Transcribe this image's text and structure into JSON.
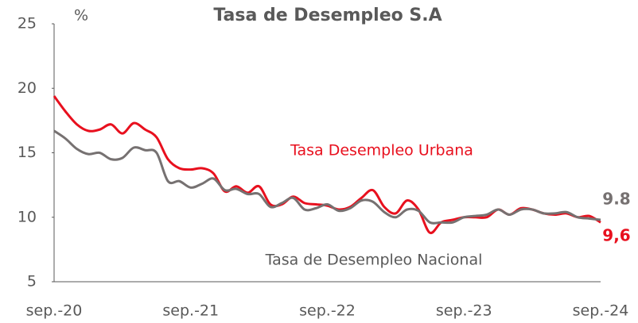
{
  "chart_data": {
    "type": "line",
    "title": "Tasa de Desempleo S.A",
    "y_label": "%",
    "categories": [
      "sep.-20",
      null,
      null,
      null,
      null,
      null,
      null,
      null,
      null,
      null,
      null,
      null,
      "sep.-21",
      null,
      null,
      null,
      null,
      null,
      null,
      null,
      null,
      null,
      null,
      null,
      "sep.-22",
      null,
      null,
      null,
      null,
      null,
      null,
      null,
      null,
      null,
      null,
      null,
      "sep.-23",
      null,
      null,
      null,
      null,
      null,
      null,
      null,
      null,
      null,
      null,
      null,
      "sep.-24"
    ],
    "series": [
      {
        "name": "Tasa Desempleo Urbana",
        "color": "#e8101e",
        "last_label": "9,6",
        "values": [
          19.4,
          18.2,
          17.2,
          16.7,
          16.8,
          17.2,
          16.5,
          17.3,
          16.8,
          16.2,
          14.5,
          13.8,
          13.7,
          13.8,
          13.4,
          12.0,
          12.4,
          11.9,
          12.4,
          11.0,
          11.0,
          11.6,
          11.1,
          11.0,
          10.9,
          10.6,
          10.8,
          11.5,
          12.1,
          10.8,
          10.3,
          11.3,
          10.6,
          8.8,
          9.6,
          9.8,
          10.0,
          10.0,
          10.0,
          10.6,
          10.2,
          10.7,
          10.6,
          10.3,
          10.2,
          10.3,
          10.0,
          10.1,
          9.6
        ]
      },
      {
        "name": "Tasa de Desempleo Nacional",
        "color": "#767171",
        "last_label": "9.8",
        "values": [
          16.7,
          16.1,
          15.3,
          14.9,
          15.0,
          14.5,
          14.6,
          15.4,
          15.2,
          15.0,
          12.8,
          12.8,
          12.3,
          12.6,
          13.0,
          12.1,
          12.2,
          11.8,
          11.8,
          10.8,
          11.1,
          11.5,
          10.6,
          10.7,
          11.0,
          10.5,
          10.7,
          11.3,
          11.2,
          10.4,
          10.0,
          10.6,
          10.5,
          9.6,
          9.6,
          9.6,
          10.0,
          10.1,
          10.2,
          10.6,
          10.2,
          10.6,
          10.6,
          10.3,
          10.3,
          10.4,
          10.0,
          9.9,
          9.8
        ]
      }
    ],
    "ylim": [
      5,
      25
    ],
    "yticks": [
      5,
      10,
      15,
      20,
      25
    ]
  }
}
